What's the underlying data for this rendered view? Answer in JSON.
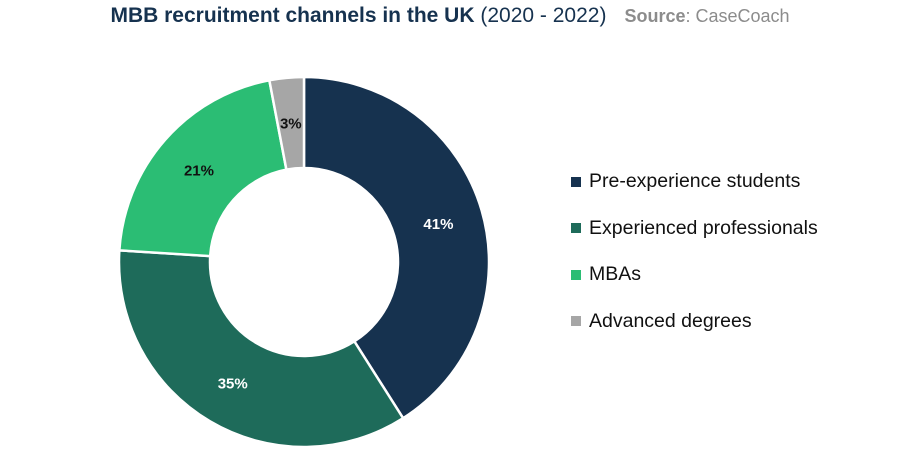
{
  "title": {
    "main": "MBB recruitment channels in the UK",
    "period": "(2020 - 2022)",
    "source_label": "Source",
    "source_value": ": CaseCoach"
  },
  "chart_data": {
    "type": "pie",
    "donut": true,
    "title": "MBB recruitment channels in the UK (2020 - 2022)",
    "legend_position": "right",
    "categories": [
      "Pre-experience students",
      "Experienced professionals",
      "MBAs",
      "Advanced degrees"
    ],
    "values": [
      41,
      35,
      21,
      3
    ],
    "labels": [
      "41%",
      "35%",
      "21%",
      "3%"
    ],
    "colors": [
      "#16324f",
      "#1e6b5a",
      "#2bbd74",
      "#a6a6a6"
    ],
    "label_colors": [
      "#ffffff",
      "#ffffff",
      "#111111",
      "#111111"
    ]
  }
}
